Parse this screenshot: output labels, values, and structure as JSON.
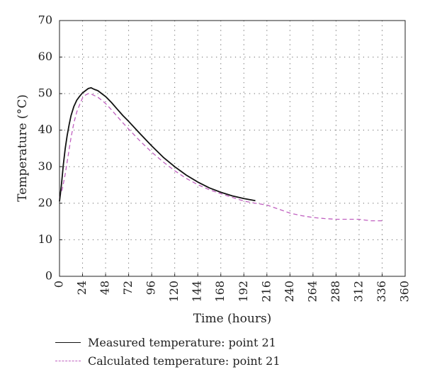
{
  "chart_data": {
    "type": "line",
    "xlabel": "Time (hours)",
    "ylabel": "Temperature (°C)",
    "xlim": [
      0,
      360
    ],
    "ylim": [
      0,
      70
    ],
    "xticks": [
      0,
      24,
      48,
      72,
      96,
      120,
      144,
      168,
      192,
      216,
      240,
      264,
      288,
      312,
      336,
      360
    ],
    "yticks": [
      0,
      10,
      20,
      30,
      40,
      50,
      60,
      70
    ],
    "grid": true,
    "legend_position": "bottom",
    "series": [
      {
        "name": "Measured temperature: point 21",
        "style": "solid",
        "color": "#111111",
        "x": [
          0,
          2,
          4,
          6,
          8,
          10,
          12,
          15,
          18,
          21,
          24,
          27,
          30,
          33,
          36,
          40,
          44,
          48,
          54,
          60,
          66,
          72,
          84,
          96,
          108,
          120,
          132,
          144,
          156,
          168,
          180,
          192,
          204
        ],
        "y": [
          20.5,
          25,
          30.5,
          35,
          38.5,
          41.5,
          44,
          46.5,
          48.2,
          49.3,
          50.2,
          50.8,
          51.4,
          51.6,
          51.2,
          50.8,
          50.0,
          49.2,
          47.6,
          45.8,
          44.0,
          42.4,
          39.0,
          35.7,
          32.6,
          30.0,
          27.7,
          25.8,
          24.2,
          23.0,
          22.0,
          21.3,
          20.7
        ]
      },
      {
        "name": "Calculated temperature: point 21",
        "style": "dashed",
        "color": "#c060c0",
        "x": [
          0,
          3,
          6,
          9,
          12,
          15,
          18,
          21,
          24,
          27,
          30,
          33,
          36,
          40,
          44,
          48,
          54,
          60,
          66,
          72,
          84,
          96,
          108,
          120,
          132,
          144,
          156,
          168,
          180,
          192,
          204,
          216,
          228,
          240,
          252,
          264,
          276,
          288,
          300,
          312,
          318,
          324,
          336
        ],
        "y": [
          21.5,
          24,
          28,
          33,
          38,
          42,
          45,
          47,
          48.8,
          49.6,
          50.0,
          49.9,
          49.5,
          49.0,
          48.2,
          47.3,
          45.6,
          43.8,
          42.0,
          40.3,
          37.0,
          34.0,
          31.3,
          28.9,
          26.8,
          25.1,
          23.7,
          22.6,
          21.6,
          20.6,
          20.0,
          19.5,
          18.4,
          17.3,
          16.6,
          16.1,
          15.8,
          15.6,
          15.6,
          15.6,
          15.4,
          15.2,
          15.2
        ]
      }
    ]
  }
}
